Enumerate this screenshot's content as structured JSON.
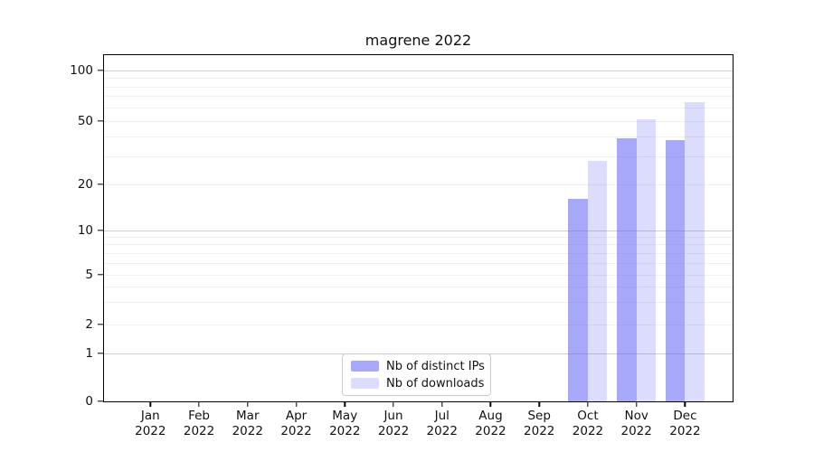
{
  "title": "magrene 2022",
  "legend": {
    "items": [
      {
        "label": "Nb of distinct IPs"
      },
      {
        "label": "Nb of downloads"
      }
    ]
  },
  "colors": {
    "ips_fill": "rgba(95,95,246,0.54)",
    "downloads_fill": "rgba(95,95,246,0.22)",
    "grid_major": "#cfcfcf",
    "grid_minor": "#f0f0f0",
    "spine": "#000000",
    "background": "#ffffff"
  },
  "axis": {
    "months": [
      "Jan",
      "Feb",
      "Mar",
      "Apr",
      "May",
      "Jun",
      "Jul",
      "Aug",
      "Sep",
      "Oct",
      "Nov",
      "Dec"
    ],
    "year": "2022",
    "yticks": [
      0,
      1,
      2,
      5,
      10,
      20,
      50,
      100
    ]
  },
  "chart_data": {
    "type": "bar",
    "title": "magrene 2022",
    "categories": [
      "Jan 2022",
      "Feb 2022",
      "Mar 2022",
      "Apr 2022",
      "May 2022",
      "Jun 2022",
      "Jul 2022",
      "Aug 2022",
      "Sep 2022",
      "Oct 2022",
      "Nov 2022",
      "Dec 2022"
    ],
    "series": [
      {
        "name": "Nb of distinct IPs",
        "values": [
          0,
          0,
          0,
          0,
          0,
          0,
          0,
          0,
          0,
          16,
          39,
          38
        ]
      },
      {
        "name": "Nb of downloads",
        "values": [
          0,
          0,
          0,
          0,
          0,
          0,
          0,
          0,
          0,
          28,
          51,
          65
        ]
      }
    ],
    "xlabel": "",
    "ylabel": "",
    "yscale": "symlog",
    "yticks": [
      0,
      1,
      2,
      5,
      10,
      20,
      50,
      100
    ],
    "ylim": [
      0,
      128
    ],
    "grid": "horizontal, major at powers of 10 plus log minors",
    "grid_major_values": [
      1,
      10,
      100
    ],
    "grid_minor_values": [
      2,
      3,
      4,
      5,
      6,
      7,
      8,
      9,
      20,
      30,
      40,
      50,
      60,
      70,
      80,
      90
    ],
    "legend_position": "lower center inside axes",
    "bar_width_ratio": 0.4
  }
}
